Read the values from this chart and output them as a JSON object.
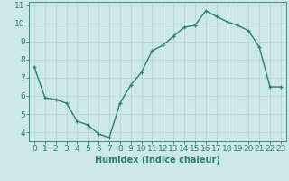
{
  "x": [
    0,
    1,
    2,
    3,
    4,
    5,
    6,
    7,
    8,
    9,
    10,
    11,
    12,
    13,
    14,
    15,
    16,
    17,
    18,
    19,
    20,
    21,
    22,
    23
  ],
  "y": [
    7.6,
    5.9,
    5.8,
    5.6,
    4.6,
    4.4,
    3.9,
    3.7,
    5.6,
    6.6,
    7.3,
    8.5,
    8.8,
    9.3,
    9.8,
    9.9,
    10.7,
    10.4,
    10.1,
    9.9,
    9.6,
    8.7,
    6.5,
    6.5
  ],
  "line_color": "#2e7d6e",
  "marker": "+",
  "marker_size": 3.5,
  "line_width": 1.0,
  "xlabel": "Humidex (Indice chaleur)",
  "xlim": [
    -0.5,
    23.5
  ],
  "ylim": [
    3.5,
    11.2
  ],
  "yticks": [
    4,
    5,
    6,
    7,
    8,
    9,
    10,
    11
  ],
  "xticks": [
    0,
    1,
    2,
    3,
    4,
    5,
    6,
    7,
    8,
    9,
    10,
    11,
    12,
    13,
    14,
    15,
    16,
    17,
    18,
    19,
    20,
    21,
    22,
    23
  ],
  "background_color": "#cce8ea",
  "grid_color": "#b8d4d6",
  "tick_color": "#2e7d6e",
  "label_color": "#2e7d6e",
  "xlabel_fontsize": 7,
  "tick_fontsize": 6.5
}
